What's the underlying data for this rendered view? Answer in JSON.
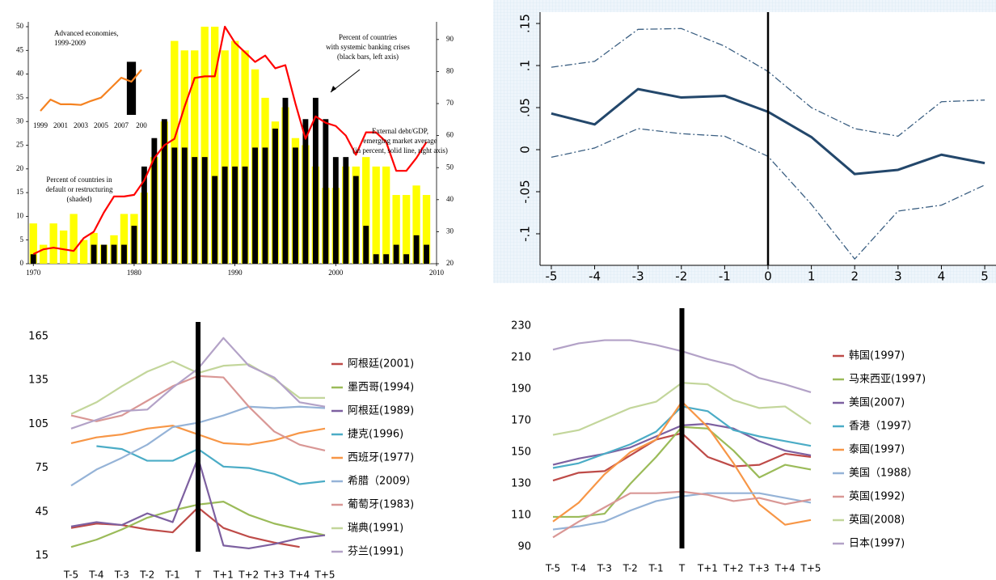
{
  "chart_data": [
    {
      "type": "bar_line",
      "x": [
        1970,
        1971,
        1972,
        1973,
        1974,
        1975,
        1976,
        1977,
        1978,
        1979,
        1980,
        1981,
        1982,
        1983,
        1984,
        1985,
        1986,
        1987,
        1988,
        1989,
        1990,
        1991,
        1992,
        1993,
        1994,
        1995,
        1996,
        1997,
        1998,
        1999,
        2000,
        2001,
        2002,
        2003,
        2004,
        2005,
        2006,
        2007,
        2008,
        2009
      ],
      "xlim": [
        1969.5,
        2010
      ],
      "xticks": [
        1970,
        1980,
        1990,
        2000,
        2010
      ],
      "ylim": [
        0,
        50
      ],
      "yticks": [
        0,
        5,
        10,
        15,
        20,
        25,
        30,
        35,
        40,
        45,
        50
      ],
      "y2lim": [
        20,
        94
      ],
      "y2ticks": [
        20,
        30,
        40,
        50,
        60,
        70,
        80,
        90
      ],
      "series": [
        {
          "name": [
            "Percent of countries in",
            "default or restructuring",
            "(shaded)"
          ],
          "kind": "bar",
          "color": "#ffff00",
          "values": [
            8.5,
            4,
            8.5,
            7,
            10.5,
            5,
            6.5,
            4,
            6,
            10.5,
            10.5,
            15,
            22.5,
            30,
            47,
            45,
            45,
            50,
            50,
            45,
            47,
            45,
            41,
            35,
            30,
            33,
            26.5,
            25,
            20.5,
            16,
            16,
            20.5,
            20.5,
            22.5,
            20.5,
            20.5,
            14.5,
            14.5,
            16.5,
            14.5
          ]
        },
        {
          "name": [
            "Percent of countries",
            "with systemic banking crises",
            "(black bars, left axis)"
          ],
          "kind": "bar",
          "color": "#000000",
          "values": [
            2,
            0,
            0,
            0,
            0,
            0,
            4,
            4,
            4,
            4,
            8,
            20.5,
            26.5,
            30.5,
            24.5,
            24.5,
            22.5,
            22.5,
            18.5,
            20.5,
            20.5,
            20.5,
            24.5,
            24.5,
            28.5,
            35,
            24.5,
            30.5,
            35,
            30.5,
            22.5,
            22.5,
            18.5,
            8,
            2,
            2,
            4,
            2,
            6,
            4
          ]
        },
        {
          "name": [
            "External debt/GDP,",
            "emerging market average",
            "(in percent, solid line, right axis)"
          ],
          "kind": "line",
          "axis": "y2",
          "color": "#ff0000",
          "values": [
            23,
            24.5,
            25,
            24.5,
            24,
            28,
            30,
            36,
            41,
            41,
            41.5,
            46,
            53,
            57,
            59,
            69,
            78,
            78.5,
            78.5,
            94,
            89,
            86,
            83,
            85,
            81,
            82,
            70,
            59,
            66,
            64,
            63,
            60,
            54,
            61,
            61,
            58,
            49,
            49,
            53,
            58
          ]
        }
      ]
    },
    {
      "type": "bar_line",
      "title": [
        "Advanced economies,",
        "1999-2009"
      ],
      "x": [
        1999,
        2000,
        2001,
        2002,
        2003,
        2004,
        2005,
        2006,
        2007,
        2008,
        2009
      ],
      "xlim": [
        1998.6,
        2009.8
      ],
      "xticks": [
        1999,
        2001,
        2003,
        2005,
        2007,
        {
          "value": 2009,
          "label": "200"
        }
      ],
      "ylim": [
        0,
        100
      ],
      "series": [
        {
          "kind": "bar",
          "color": "#000000",
          "values": [
            null,
            null,
            null,
            null,
            null,
            null,
            null,
            null,
            null,
            80,
            null
          ]
        },
        {
          "kind": "line",
          "color": "#f58220",
          "values": [
            6,
            23,
            16,
            16,
            15,
            21,
            26,
            41,
            56,
            50,
            68
          ]
        }
      ]
    },
    {
      "type": "line",
      "x": [
        -5,
        -4,
        -3,
        -2,
        -1,
        0,
        1,
        2,
        3,
        4,
        5
      ],
      "xlim": [
        -5.26,
        5.26
      ],
      "xticks": [
        -5,
        -4,
        -3,
        -2,
        -1,
        0,
        1,
        2,
        3,
        4,
        5
      ],
      "ylim": [
        -0.1375,
        0.1635
      ],
      "yticks": [
        {
          "value": -0.1,
          "label": "-.1"
        },
        {
          "value": -0.05,
          "label": "-.05"
        },
        0,
        {
          "value": 0.05,
          "label": ".05"
        },
        {
          "value": 0.1,
          "label": ".1"
        },
        {
          "value": 0.15,
          "label": ".15"
        }
      ],
      "vline_x": 0,
      "series": [
        {
          "color": "#3b5f82",
          "style": "dashdot",
          "values": [
            0.098,
            0.105,
            0.143,
            0.144,
            0.123,
            0.093,
            0.05,
            0.025,
            0.016,
            0.057,
            0.059
          ]
        },
        {
          "color": "#23476b",
          "style": "solid",
          "values": [
            0.043,
            0.03,
            0.072,
            0.062,
            0.064,
            0.045,
            0.015,
            -0.029,
            -0.024,
            -0.006,
            -0.016
          ]
        },
        {
          "color": "#3b5f82",
          "style": "dashdot",
          "values": [
            -0.009,
            0.002,
            0.025,
            0.019,
            0.016,
            -0.008,
            -0.065,
            -0.13,
            -0.073,
            -0.066,
            -0.042
          ]
        }
      ]
    },
    {
      "type": "line",
      "categories": [
        "T-5",
        "T-4",
        "T-3",
        "T-2",
        "T-1",
        "T",
        "T+1",
        "T+2",
        "T+3",
        "T+4",
        "T+5"
      ],
      "ylim": [
        15,
        165
      ],
      "yticks": [
        15,
        45,
        75,
        105,
        135,
        165
      ],
      "vline_index": 5,
      "series": [
        {
          "name": "阿根廷(2001)",
          "color": "#be4b48",
          "values": [
            34,
            37,
            36,
            33,
            31,
            48,
            34,
            28,
            24,
            21,
            null
          ]
        },
        {
          "name": "墨西哥(1994)",
          "color": "#9bbb59",
          "values": [
            21,
            26,
            33,
            41,
            46,
            50,
            52,
            43,
            37,
            33,
            29
          ]
        },
        {
          "name": "阿根廷(1989)",
          "color": "#7d60a0",
          "values": [
            35,
            38,
            36,
            44,
            38,
            82,
            22,
            20,
            23,
            27,
            29
          ]
        },
        {
          "name": "捷克(1996)",
          "color": "#4bacc6",
          "values": [
            null,
            90,
            88,
            80,
            80,
            88,
            76,
            75,
            71,
            64,
            66
          ]
        },
        {
          "name": "西班牙(1977)",
          "color": "#f79646",
          "values": [
            92,
            96,
            98,
            102,
            104,
            98,
            92,
            91,
            94,
            99,
            102
          ]
        },
        {
          "name": "希腊（2009）",
          "color": "#95b3d7",
          "values": [
            63,
            74,
            82,
            91,
            103,
            106,
            111,
            117,
            116,
            117,
            116
          ]
        },
        {
          "name": "葡萄牙(1983)",
          "color": "#d99795",
          "values": [
            111,
            107,
            111,
            121,
            131,
            138,
            137,
            117,
            100,
            91,
            87
          ]
        },
        {
          "name": "瑞典(1991)",
          "color": "#c3d69b",
          "values": [
            112,
            120,
            131,
            141,
            148,
            140,
            145,
            146,
            136,
            123,
            123
          ]
        },
        {
          "name": "芬兰(1991)",
          "color": "#b3a2c7",
          "values": [
            102,
            108,
            114,
            115,
            130,
            143,
            164,
            145,
            137,
            120,
            117
          ]
        }
      ]
    },
    {
      "type": "line",
      "categories": [
        "T-5",
        "T-4",
        "T-3",
        "T-2",
        "T-1",
        "T",
        "T+1",
        "T+2",
        "T+3",
        "T+4",
        "T+5"
      ],
      "ylim": [
        90,
        230
      ],
      "yticks": [
        90,
        110,
        130,
        150,
        170,
        190,
        210,
        230
      ],
      "vline_index": 5,
      "series": [
        {
          "name": "韩国(1997)",
          "color": "#be4b48",
          "values": [
            132,
            137,
            138,
            148,
            158,
            162,
            147,
            141,
            142,
            149,
            147
          ]
        },
        {
          "name": "马来西亚(1997)",
          "color": "#9bbb59",
          "values": [
            109,
            109,
            111,
            130,
            147,
            166,
            165,
            151,
            134,
            142,
            139
          ]
        },
        {
          "name": "美国(2007)",
          "color": "#7d60a0",
          "values": [
            142,
            146,
            149,
            153,
            160,
            167,
            168,
            165,
            157,
            151,
            148
          ]
        },
        {
          "name": "香港（1997）",
          "color": "#4bacc6",
          "values": [
            140,
            143,
            149,
            155,
            163,
            179,
            176,
            164,
            160,
            157,
            154
          ]
        },
        {
          "name": "泰国(1997)",
          "color": "#f79646",
          "values": [
            106,
            118,
            136,
            150,
            158,
            182,
            166,
            143,
            117,
            104,
            107
          ]
        },
        {
          "name": "美国（1988）",
          "color": "#95b3d7",
          "values": [
            101,
            103,
            106,
            113,
            119,
            122,
            124,
            124,
            124,
            121,
            118
          ]
        },
        {
          "name": "英国(1992)",
          "color": "#d99795",
          "values": [
            96,
            106,
            115,
            124,
            124,
            125,
            123,
            119,
            121,
            117,
            120
          ]
        },
        {
          "name": "英国(2008)",
          "color": "#c3d69b",
          "values": [
            161,
            164,
            171,
            178,
            182,
            194,
            193,
            183,
            178,
            179,
            168
          ]
        },
        {
          "name": "日本(1997)",
          "color": "#b3a2c7",
          "values": [
            215,
            219,
            221,
            221,
            218,
            214,
            209,
            205,
            197,
            193,
            188
          ]
        }
      ]
    }
  ]
}
